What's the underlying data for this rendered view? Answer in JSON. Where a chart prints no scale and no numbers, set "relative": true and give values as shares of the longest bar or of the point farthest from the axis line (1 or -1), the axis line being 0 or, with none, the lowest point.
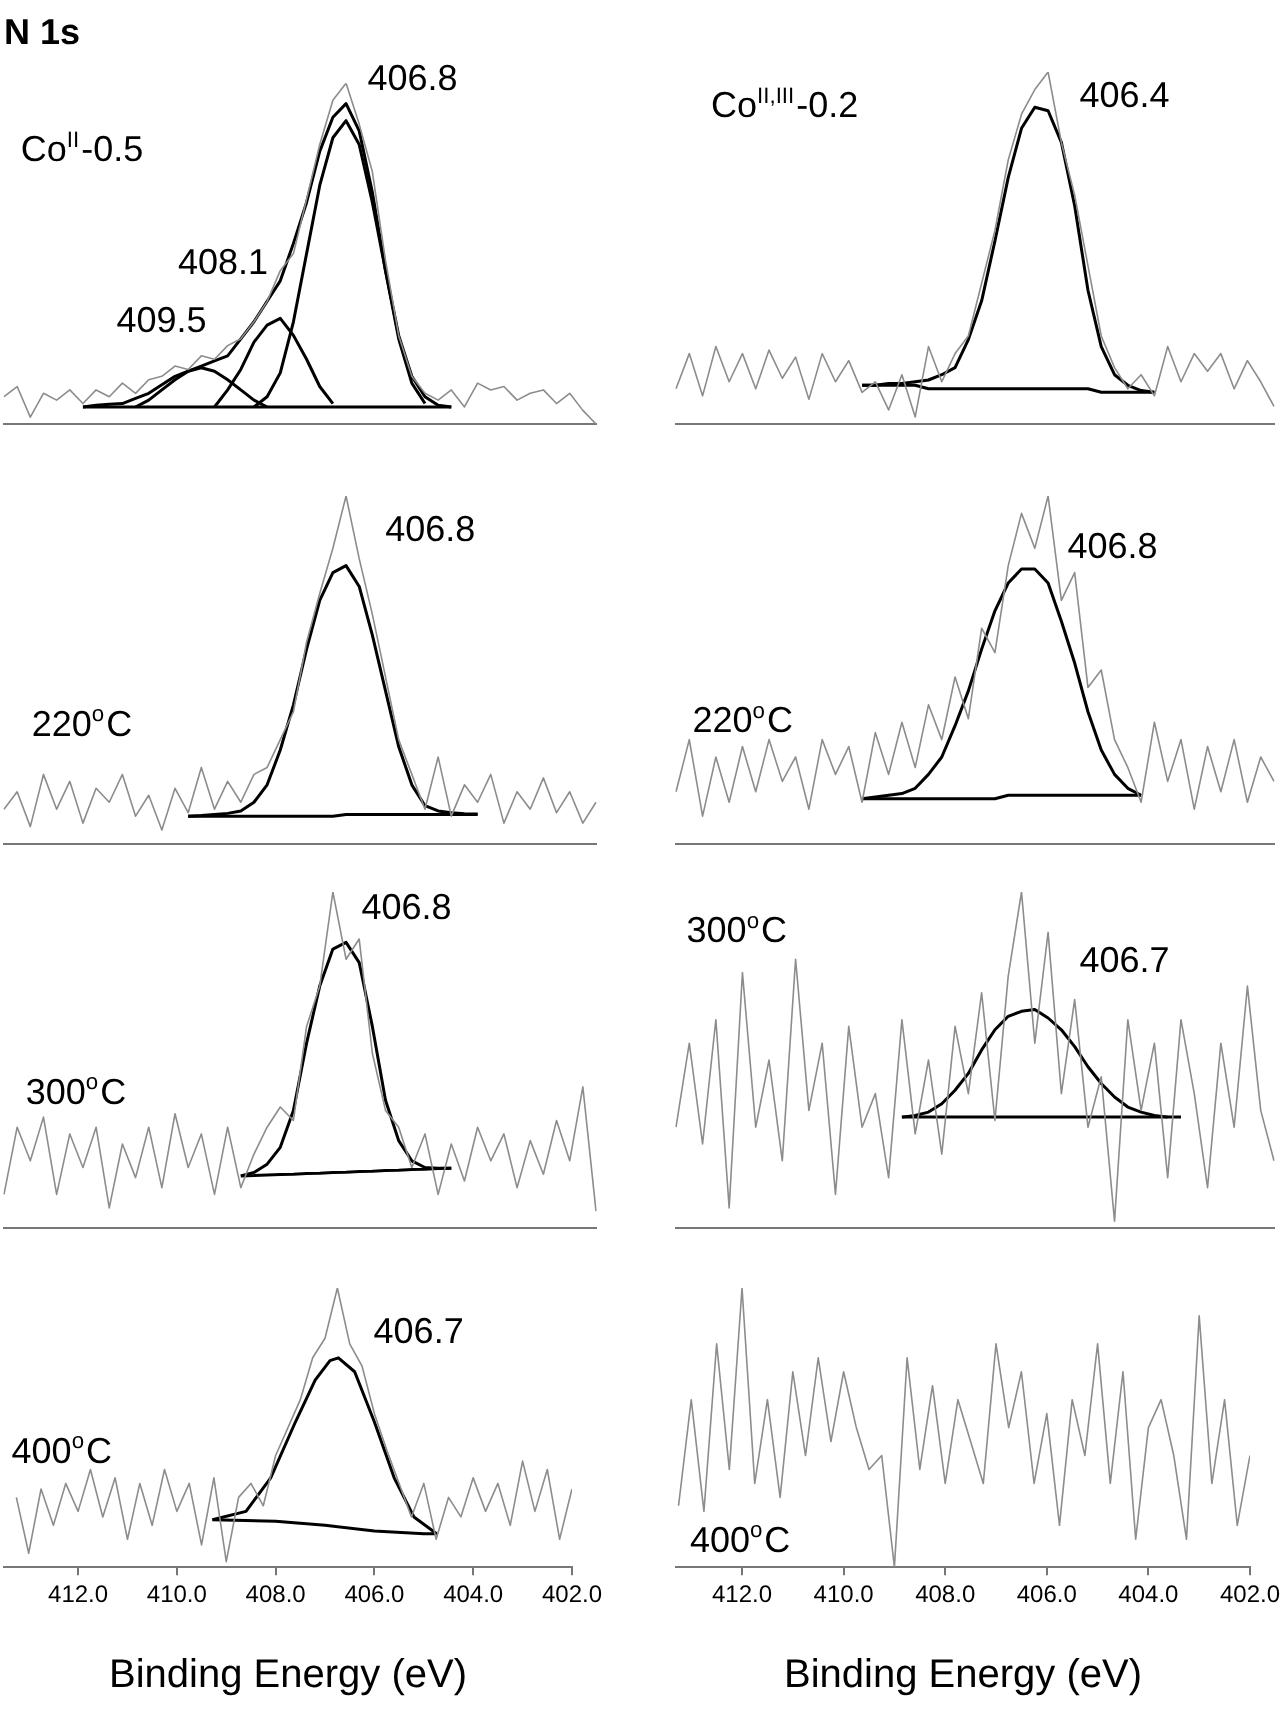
{
  "chart_data": [
    {
      "type": "line",
      "title": "N 1s",
      "relative": true,
      "tick_labels": false,
      "categories": [
        null,
        null,
        null,
        null,
        null,
        null,
        null,
        null,
        null,
        null,
        null,
        null,
        null,
        null,
        null,
        null,
        null,
        null,
        null,
        null,
        null,
        null,
        null,
        null,
        null,
        null,
        null,
        null,
        null,
        null,
        null,
        null,
        null,
        null,
        null,
        null,
        null,
        null,
        null,
        null,
        null,
        null,
        null,
        null,
        null,
        null
      ],
      "series": [
        {
          "color": "#8c8c8c",
          "values": [
            0.08,
            0.11,
            0.02,
            0.09,
            0.07,
            0.1,
            0.06,
            0.1,
            0.08,
            0.12,
            0.09,
            0.13,
            0.14,
            0.17,
            0.16,
            0.2,
            0.19,
            0.23,
            0.25,
            0.3,
            0.36,
            0.45,
            0.5,
            0.66,
            0.82,
            0.95,
            1,
            0.88,
            0.74,
            0.48,
            0.26,
            0.14,
            0.09,
            0.07,
            0.1,
            0.05,
            0.12,
            0.1,
            0.11,
            0.07,
            0.09,
            0.1,
            0.06,
            0.09,
            0.04,
            0
          ]
        },
        {
          "color": "#000000",
          "values": [
            null,
            null,
            null,
            null,
            null,
            null,
            0.05,
            0.055,
            0.058,
            0.06,
            0.075,
            0.09,
            0.115,
            0.14,
            0.155,
            0.17,
            0.185,
            0.2,
            0.25,
            0.3,
            0.36,
            0.42,
            0.53,
            0.65,
            0.8,
            0.9,
            0.94,
            0.86,
            0.68,
            0.45,
            0.26,
            0.14,
            0.08,
            0.055,
            0.05,
            null,
            null,
            null,
            null,
            null,
            null,
            null,
            null,
            null,
            null,
            null
          ]
        },
        {
          "color": "#000000",
          "values": [
            null,
            null,
            null,
            null,
            null,
            null,
            null,
            null,
            null,
            null,
            null,
            null,
            null,
            null,
            null,
            null,
            null,
            null,
            null,
            0.05,
            0.08,
            0.15,
            0.3,
            0.5,
            0.7,
            0.84,
            0.89,
            0.82,
            0.65,
            0.45,
            0.25,
            0.12,
            0.06,
            null,
            null,
            null,
            null,
            null,
            null,
            null,
            null,
            null,
            null,
            null,
            null,
            null
          ]
        },
        {
          "color": "#000000",
          "values": [
            null,
            null,
            null,
            null,
            null,
            null,
            null,
            null,
            null,
            null,
            null,
            null,
            null,
            null,
            null,
            null,
            0.05,
            0.1,
            0.16,
            0.24,
            0.29,
            0.31,
            0.26,
            0.19,
            0.11,
            0.06,
            null,
            null,
            null,
            null,
            null,
            null,
            null,
            null,
            null,
            null,
            null,
            null,
            null,
            null,
            null,
            null,
            null,
            null,
            null,
            null
          ]
        },
        {
          "color": "#000000",
          "values": [
            null,
            null,
            null,
            null,
            null,
            null,
            null,
            null,
            null,
            null,
            0.05,
            0.07,
            0.1,
            0.13,
            0.155,
            0.165,
            0.155,
            0.13,
            0.1,
            0.07,
            0.05,
            null,
            null,
            null,
            null,
            null,
            null,
            null,
            null,
            null,
            null,
            null,
            null,
            null,
            null,
            null,
            null,
            null,
            null,
            null,
            null,
            null,
            null,
            null,
            null,
            null
          ]
        },
        {
          "color": "#000000",
          "values": [
            null,
            null,
            null,
            null,
            null,
            null,
            0.05,
            0.05,
            0.05,
            0.05,
            0.05,
            0.05,
            0.05,
            0.05,
            0.05,
            0.05,
            0.05,
            0.05,
            0.05,
            0.05,
            0.05,
            0.05,
            0.05,
            0.05,
            0.05,
            0.05,
            0.05,
            0.05,
            0.05,
            0.05,
            0.05,
            0.05,
            0.05,
            0.05,
            0.05,
            null,
            null,
            null,
            null,
            null,
            null,
            null,
            null,
            null,
            null,
            null
          ]
        }
      ],
      "annotations": [
        "Co$^{II}$-0.5",
        "409.5",
        "408.1",
        "406.8"
      ]
    },
    {
      "type": "line",
      "relative": true,
      "tick_labels": false,
      "categories": [
        null,
        null,
        null,
        null,
        null,
        null,
        null,
        null,
        null,
        null,
        null,
        null,
        null,
        null,
        null,
        null,
        null,
        null,
        null,
        null,
        null,
        null,
        null,
        null,
        null,
        null,
        null,
        null,
        null,
        null,
        null,
        null,
        null,
        null,
        null,
        null,
        null,
        null,
        null,
        null,
        null,
        null,
        null,
        null,
        null,
        null
      ],
      "series": [
        {
          "color": "#8c8c8c",
          "values": [
            0.1,
            0.2,
            0.08,
            0.22,
            0.12,
            0.2,
            0.1,
            0.21,
            0.13,
            0.19,
            0.07,
            0.2,
            0.12,
            0.18,
            0.09,
            0.12,
            0.04,
            0.14,
            0.02,
            0.22,
            0.12,
            0.2,
            0.25,
            0.4,
            0.55,
            0.75,
            0.88,
            0.95,
            1,
            0.8,
            0.65,
            0.45,
            0.25,
            0.16,
            0.1,
            0.14,
            0.08,
            0.22,
            0.12,
            0.2,
            0.15,
            0.2,
            0.1,
            0.18,
            0.12,
            0.05
          ]
        },
        {
          "color": "#000000",
          "values": [
            null,
            null,
            null,
            null,
            null,
            null,
            null,
            null,
            null,
            null,
            null,
            null,
            null,
            null,
            0.11,
            0.11,
            0.115,
            0.115,
            0.12,
            0.125,
            0.14,
            0.16,
            0.24,
            0.35,
            0.52,
            0.7,
            0.84,
            0.9,
            0.89,
            0.8,
            0.62,
            0.38,
            0.22,
            0.14,
            0.11,
            0.095,
            0.09,
            null,
            null,
            null,
            null,
            null,
            null,
            null,
            null,
            null
          ]
        },
        {
          "color": "#000000",
          "values": [
            null,
            null,
            null,
            null,
            null,
            null,
            null,
            null,
            null,
            null,
            null,
            null,
            null,
            null,
            0.11,
            0.11,
            0.11,
            0.11,
            0.11,
            0.1,
            0.1,
            0.1,
            0.1,
            0.1,
            0.1,
            0.1,
            0.1,
            0.1,
            0.1,
            0.1,
            0.1,
            0.1,
            0.09,
            0.09,
            0.09,
            0.09,
            0.09,
            null,
            null,
            null,
            null,
            null,
            null,
            null,
            null,
            null
          ]
        }
      ],
      "annotations": [
        "Co$^{II,III}$-0.2",
        "406.4"
      ]
    },
    {
      "type": "line",
      "relative": true,
      "tick_labels": false,
      "categories": [
        null,
        null,
        null,
        null,
        null,
        null,
        null,
        null,
        null,
        null,
        null,
        null,
        null,
        null,
        null,
        null,
        null,
        null,
        null,
        null,
        null,
        null,
        null,
        null,
        null,
        null,
        null,
        null,
        null,
        null,
        null,
        null,
        null,
        null,
        null,
        null,
        null,
        null,
        null,
        null,
        null,
        null,
        null,
        null,
        null,
        null
      ],
      "series": [
        {
          "color": "#8c8c8c",
          "values": [
            0.1,
            0.15,
            0.05,
            0.2,
            0.1,
            0.18,
            0.06,
            0.16,
            0.12,
            0.2,
            0.08,
            0.14,
            0.04,
            0.16,
            0.09,
            0.22,
            0.1,
            0.18,
            0.12,
            0.2,
            0.22,
            0.3,
            0.38,
            0.58,
            0.72,
            0.85,
            1,
            0.82,
            0.66,
            0.48,
            0.3,
            0.2,
            0.1,
            0.25,
            0.08,
            0.17,
            0.12,
            0.2,
            0.06,
            0.15,
            0.1,
            0.19,
            0.09,
            0.15,
            0.06,
            0.12
          ]
        },
        {
          "color": "#000000",
          "values": [
            null,
            null,
            null,
            null,
            null,
            null,
            null,
            null,
            null,
            null,
            null,
            null,
            null,
            null,
            0.08,
            0.082,
            0.085,
            0.088,
            0.095,
            0.12,
            0.17,
            0.27,
            0.4,
            0.56,
            0.7,
            0.78,
            0.8,
            0.74,
            0.6,
            0.44,
            0.28,
            0.17,
            0.11,
            0.095,
            0.09,
            0.087,
            0.086,
            null,
            null,
            null,
            null,
            null,
            null,
            null,
            null,
            null
          ]
        },
        {
          "color": "#000000",
          "values": [
            null,
            null,
            null,
            null,
            null,
            null,
            null,
            null,
            null,
            null,
            null,
            null,
            null,
            null,
            0.08,
            0.08,
            0.08,
            0.08,
            0.08,
            0.08,
            0.08,
            0.08,
            0.08,
            0.08,
            0.08,
            0.08,
            0.085,
            0.085,
            0.085,
            0.085,
            0.085,
            0.085,
            0.085,
            0.085,
            0.085,
            0.085,
            0.085,
            null,
            null,
            null,
            null,
            null,
            null,
            null,
            null,
            null
          ]
        }
      ],
      "annotations": [
        "220$^{o}$C",
        "406.8"
      ]
    },
    {
      "type": "line",
      "relative": true,
      "tick_labels": false,
      "categories": [
        null,
        null,
        null,
        null,
        null,
        null,
        null,
        null,
        null,
        null,
        null,
        null,
        null,
        null,
        null,
        null,
        null,
        null,
        null,
        null,
        null,
        null,
        null,
        null,
        null,
        null,
        null,
        null,
        null,
        null,
        null,
        null,
        null,
        null,
        null,
        null,
        null,
        null,
        null,
        null,
        null,
        null,
        null,
        null,
        null,
        null
      ],
      "series": [
        {
          "color": "#8c8c8c",
          "values": [
            0.15,
            0.3,
            0.08,
            0.25,
            0.12,
            0.28,
            0.15,
            0.3,
            0.18,
            0.25,
            0.1,
            0.3,
            0.2,
            0.28,
            0.12,
            0.32,
            0.2,
            0.35,
            0.22,
            0.4,
            0.3,
            0.48,
            0.36,
            0.62,
            0.55,
            0.8,
            0.95,
            0.85,
            1,
            0.7,
            0.78,
            0.45,
            0.5,
            0.3,
            0.22,
            0.12,
            0.35,
            0.18,
            0.3,
            0.1,
            0.28,
            0.15,
            0.3,
            0.12,
            0.25,
            0.18
          ]
        },
        {
          "color": "#000000",
          "values": [
            null,
            null,
            null,
            null,
            null,
            null,
            null,
            null,
            null,
            null,
            null,
            null,
            null,
            null,
            0.13,
            0.135,
            0.14,
            0.145,
            0.16,
            0.2,
            0.25,
            0.34,
            0.44,
            0.56,
            0.67,
            0.75,
            0.79,
            0.79,
            0.75,
            0.64,
            0.52,
            0.38,
            0.27,
            0.2,
            0.16,
            0.14,
            null,
            null,
            null,
            null,
            null,
            null,
            null,
            null,
            null,
            null
          ]
        },
        {
          "color": "#000000",
          "values": [
            null,
            null,
            null,
            null,
            null,
            null,
            null,
            null,
            null,
            null,
            null,
            null,
            null,
            null,
            0.13,
            0.13,
            0.13,
            0.13,
            0.13,
            0.13,
            0.13,
            0.13,
            0.13,
            0.13,
            0.13,
            0.14,
            0.14,
            0.14,
            0.14,
            0.14,
            0.14,
            0.14,
            0.14,
            0.14,
            0.14,
            0.14,
            null,
            null,
            null,
            null,
            null,
            null,
            null,
            null,
            null,
            null
          ]
        }
      ],
      "annotations": [
        "220$^{o}$C",
        "406.8"
      ]
    },
    {
      "type": "line",
      "relative": true,
      "tick_labels": false,
      "categories": [
        null,
        null,
        null,
        null,
        null,
        null,
        null,
        null,
        null,
        null,
        null,
        null,
        null,
        null,
        null,
        null,
        null,
        null,
        null,
        null,
        null,
        null,
        null,
        null,
        null,
        null,
        null,
        null,
        null,
        null,
        null,
        null,
        null,
        null,
        null,
        null,
        null,
        null,
        null,
        null,
        null,
        null,
        null,
        null,
        null,
        null
      ],
      "series": [
        {
          "color": "#8c8c8c",
          "values": [
            0.1,
            0.3,
            0.2,
            0.33,
            0.1,
            0.28,
            0.18,
            0.3,
            0.06,
            0.25,
            0.15,
            0.3,
            0.12,
            0.34,
            0.18,
            0.28,
            0.1,
            0.3,
            0.12,
            0.22,
            0.3,
            0.36,
            0.32,
            0.6,
            0.72,
            1,
            0.8,
            0.86,
            0.52,
            0.35,
            0.3,
            0.18,
            0.28,
            0.1,
            0.25,
            0.14,
            0.3,
            0.2,
            0.28,
            0.12,
            0.26,
            0.16,
            0.32,
            0.2,
            0.42,
            0.05
          ]
        },
        {
          "color": "#000000",
          "values": [
            null,
            null,
            null,
            null,
            null,
            null,
            null,
            null,
            null,
            null,
            null,
            null,
            null,
            null,
            null,
            null,
            null,
            null,
            0.155,
            0.165,
            0.19,
            0.24,
            0.35,
            0.55,
            0.72,
            0.83,
            0.85,
            0.79,
            0.6,
            0.38,
            0.26,
            0.2,
            0.18,
            0.178,
            0.178,
            null,
            null,
            null,
            null,
            null,
            null,
            null,
            null,
            null,
            null,
            null
          ]
        },
        {
          "color": "#000000",
          "values": [
            null,
            null,
            null,
            null,
            null,
            null,
            null,
            null,
            null,
            null,
            null,
            null,
            null,
            null,
            null,
            null,
            null,
            null,
            0.155,
            0.156,
            0.158,
            0.159,
            0.16,
            0.162,
            0.163,
            0.165,
            0.166,
            0.168,
            0.169,
            0.171,
            0.172,
            0.174,
            0.175,
            0.177,
            0.178,
            null,
            null,
            null,
            null,
            null,
            null,
            null,
            null,
            null,
            null,
            null
          ]
        }
      ],
      "annotations": [
        "300$^{o}$C",
        "406.8"
      ]
    },
    {
      "type": "line",
      "relative": true,
      "tick_labels": false,
      "categories": [
        null,
        null,
        null,
        null,
        null,
        null,
        null,
        null,
        null,
        null,
        null,
        null,
        null,
        null,
        null,
        null,
        null,
        null,
        null,
        null,
        null,
        null,
        null,
        null,
        null,
        null,
        null,
        null,
        null,
        null,
        null,
        null,
        null,
        null,
        null,
        null,
        null,
        null,
        null,
        null,
        null,
        null,
        null,
        null,
        null,
        null
      ],
      "series": [
        {
          "color": "#8c8c8c",
          "values": [
            0.3,
            0.55,
            0.25,
            0.62,
            0.06,
            0.76,
            0.3,
            0.5,
            0.2,
            0.8,
            0.35,
            0.55,
            0.1,
            0.6,
            0.3,
            0.4,
            0.15,
            0.62,
            0.28,
            0.5,
            0.22,
            0.6,
            0.4,
            0.7,
            0.32,
            0.75,
            1,
            0.55,
            0.88,
            0.4,
            0.68,
            0.3,
            0.45,
            0.02,
            0.62,
            0.35,
            0.55,
            0.15,
            0.62,
            0.4,
            0.12,
            0.55,
            0.3,
            0.72,
            0.35,
            0.2
          ]
        },
        {
          "color": "#000000",
          "values": [
            null,
            null,
            null,
            null,
            null,
            null,
            null,
            null,
            null,
            null,
            null,
            null,
            null,
            null,
            null,
            null,
            null,
            0.33,
            0.335,
            0.345,
            0.37,
            0.41,
            0.46,
            0.53,
            0.59,
            0.63,
            0.645,
            0.65,
            0.625,
            0.59,
            0.54,
            0.48,
            0.43,
            0.39,
            0.36,
            0.345,
            0.335,
            0.33,
            null,
            null,
            null,
            null,
            null,
            null,
            null,
            null
          ]
        },
        {
          "color": "#000000",
          "values": [
            null,
            null,
            null,
            null,
            null,
            null,
            null,
            null,
            null,
            null,
            null,
            null,
            null,
            null,
            null,
            null,
            null,
            0.33,
            0.33,
            0.33,
            0.33,
            0.33,
            0.33,
            0.33,
            0.33,
            0.33,
            0.33,
            0.33,
            0.33,
            0.33,
            0.33,
            0.33,
            0.33,
            0.33,
            0.33,
            0.33,
            0.33,
            0.33,
            0.33,
            null,
            null,
            null,
            null,
            null,
            null,
            null
          ]
        }
      ],
      "annotations": [
        "300$^{o}$C",
        "406.7"
      ]
    },
    {
      "type": "line",
      "relative": true,
      "tick_labels": "x",
      "xlabel": "Binding Energy (eV)",
      "xlim": [
        413.5,
        402
      ],
      "xticks": [
        {
          "value": 412,
          "label": "412.0"
        },
        {
          "value": 410,
          "label": "410.0"
        },
        {
          "value": 408,
          "label": "408.0"
        },
        {
          "value": 406,
          "label": "406.0"
        },
        {
          "value": 404,
          "label": "404.0"
        },
        {
          "value": 402,
          "label": "402.0"
        }
      ],
      "x": [
        413.25,
        413,
        412.75,
        412.5,
        412.25,
        412,
        411.75,
        411.5,
        411.25,
        411,
        410.75,
        410.5,
        410.25,
        410,
        409.75,
        409.5,
        409.25,
        409,
        408.75,
        408.5,
        408.25,
        408,
        407.75,
        407.5,
        407.25,
        407,
        406.75,
        406.5,
        406.25,
        406,
        405.75,
        405.5,
        405.25,
        405,
        404.75,
        404.5,
        404.25,
        404,
        403.75,
        403.5,
        403.25,
        403,
        402.75,
        402.5,
        402.25,
        402
      ],
      "series": [
        {
          "color": "#8c8c8c",
          "values": [
            0.25,
            0.05,
            0.28,
            0.15,
            0.3,
            0.2,
            0.35,
            0.18,
            0.32,
            0.1,
            0.3,
            0.15,
            0.35,
            0.2,
            0.3,
            0.08,
            0.32,
            0.02,
            0.25,
            0.3,
            0.22,
            0.4,
            0.5,
            0.6,
            0.75,
            0.82,
            1,
            0.8,
            0.72,
            0.55,
            0.42,
            0.3,
            0.18,
            0.3,
            0.1,
            0.25,
            0.18,
            0.32,
            0.2,
            0.3,
            0.15,
            0.38,
            0.2,
            0.35,
            0.1,
            0.28
          ]
        },
        {
          "color": "#000000",
          "x": [
            409.28,
            408.6,
            408.1,
            407.6,
            407.2,
            406.9,
            406.73,
            406.4,
            406,
            405.6,
            405.2,
            404.74
          ],
          "values": [
            0.17,
            0.2,
            0.32,
            0.52,
            0.67,
            0.74,
            0.75,
            0.7,
            0.52,
            0.32,
            0.18,
            0.12
          ]
        },
        {
          "color": "#000000",
          "x": [
            409.28,
            408,
            407,
            406,
            405,
            404.74
          ],
          "values": [
            0.17,
            0.165,
            0.15,
            0.13,
            0.12,
            0.12
          ]
        }
      ],
      "annotations": [
        "400$^{o}$C",
        "406.7"
      ]
    },
    {
      "type": "line",
      "relative": true,
      "tick_labels": "x",
      "xlabel": "Binding Energy (eV)",
      "xlim": [
        413.3,
        402
      ],
      "xticks": [
        {
          "value": 412,
          "label": "412.0"
        },
        {
          "value": 410,
          "label": "410.0"
        },
        {
          "value": 408,
          "label": "408.0"
        },
        {
          "value": 406,
          "label": "406.0"
        },
        {
          "value": 404,
          "label": "404.0"
        },
        {
          "value": 402,
          "label": "402.0"
        }
      ],
      "x": [
        413.25,
        413,
        412.75,
        412.5,
        412.25,
        412,
        411.75,
        411.5,
        411.25,
        411,
        410.75,
        410.5,
        410.25,
        410,
        409.75,
        409.5,
        409.25,
        409,
        408.75,
        408.5,
        408.25,
        408,
        407.75,
        407.5,
        407.25,
        407,
        406.75,
        406.5,
        406.25,
        406,
        405.75,
        405.5,
        405.25,
        405,
        404.75,
        404.5,
        404.25,
        404,
        403.75,
        403.5,
        403.25,
        403,
        402.75,
        402.5,
        402.25,
        402
      ],
      "series": [
        {
          "color": "#8c8c8c",
          "values": [
            0.22,
            0.6,
            0.2,
            0.8,
            0.35,
            1,
            0.3,
            0.6,
            0.25,
            0.7,
            0.4,
            0.75,
            0.45,
            0.7,
            0.5,
            0.35,
            0.4,
            0,
            0.75,
            0.35,
            0.65,
            0.3,
            0.6,
            0.45,
            0.3,
            0.8,
            0.5,
            0.7,
            0.3,
            0.55,
            0.15,
            0.6,
            0.4,
            0.8,
            0.3,
            0.7,
            0.1,
            0.5,
            0.6,
            0.4,
            0.1,
            0.9,
            0.3,
            0.6,
            0.15,
            0.4
          ]
        }
      ],
      "annotations": [
        "400$^{o}$C"
      ]
    }
  ]
}
